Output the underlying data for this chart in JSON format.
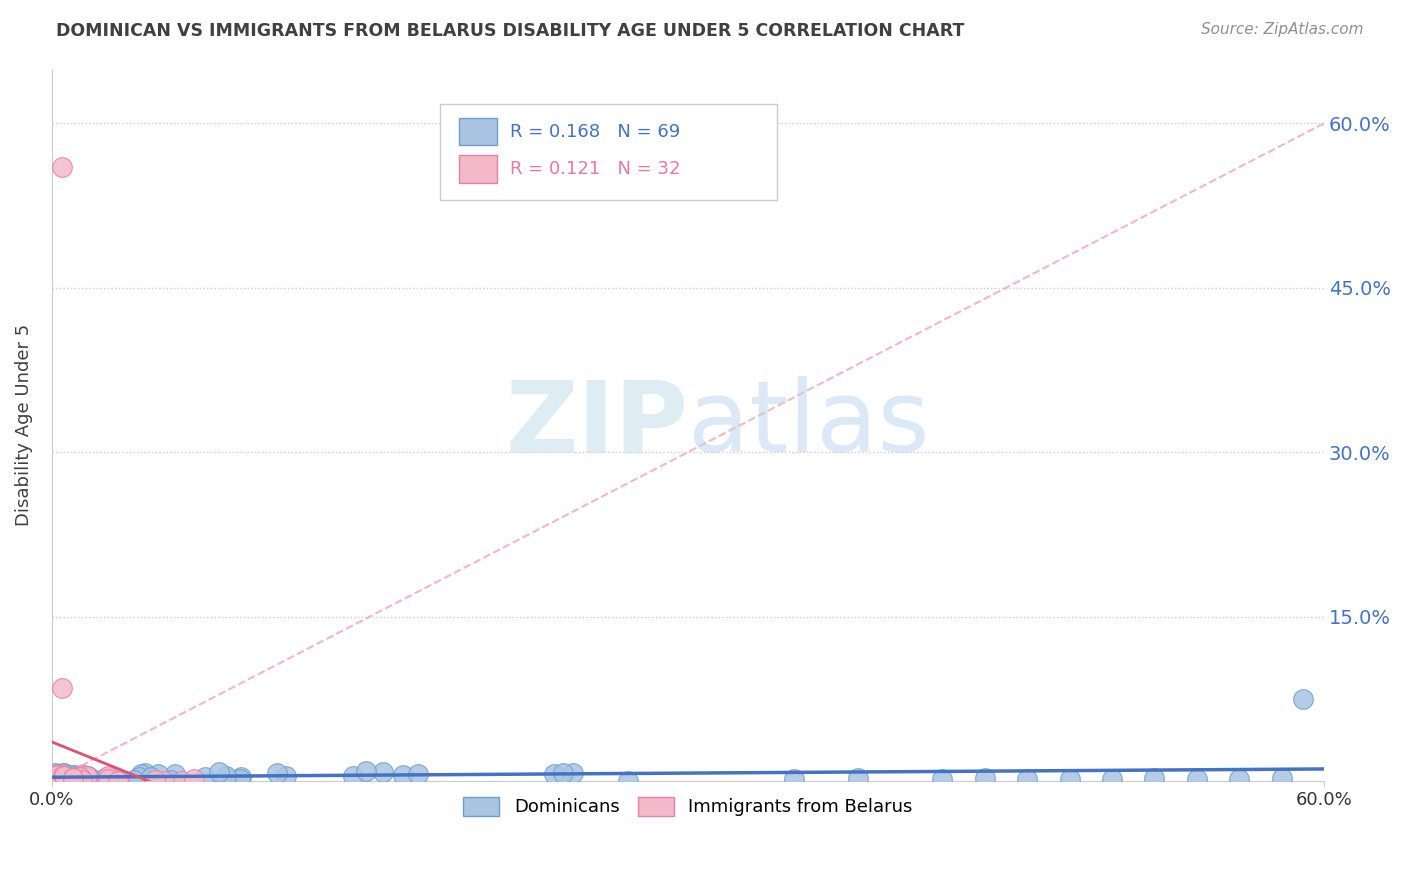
{
  "title": "DOMINICAN VS IMMIGRANTS FROM BELARUS DISABILITY AGE UNDER 5 CORRELATION CHART",
  "source": "Source: ZipAtlas.com",
  "ylabel_label": "Disability Age Under 5",
  "xlim": [
    0.0,
    0.6
  ],
  "ylim": [
    0.0,
    0.65
  ],
  "blue_R": 0.168,
  "blue_N": 69,
  "pink_R": 0.121,
  "pink_N": 32,
  "blue_color": "#aac4e2",
  "blue_edge_color": "#6aa0d0",
  "pink_color": "#f4baca",
  "pink_edge_color": "#e880a0",
  "blue_line_color": "#4472c4",
  "pink_line_color": "#e05070",
  "diagonal_color": "#f0b0c0",
  "watermark_color": "#d0e4f0",
  "legend_label_blue": "Dominicans",
  "legend_label_pink": "Immigrants from Belarus",
  "ytick_positions": [
    0.0,
    0.15,
    0.3,
    0.45,
    0.6
  ],
  "ytick_labels_right": [
    "",
    "15.0%",
    "30.0%",
    "45.0%",
    "60.0%"
  ],
  "xtick_positions": [
    0.0,
    0.6
  ],
  "xtick_labels": [
    "0.0%",
    "60.0%"
  ],
  "grid_color": "#cccccc",
  "title_color": "#404040",
  "source_color": "#909090"
}
